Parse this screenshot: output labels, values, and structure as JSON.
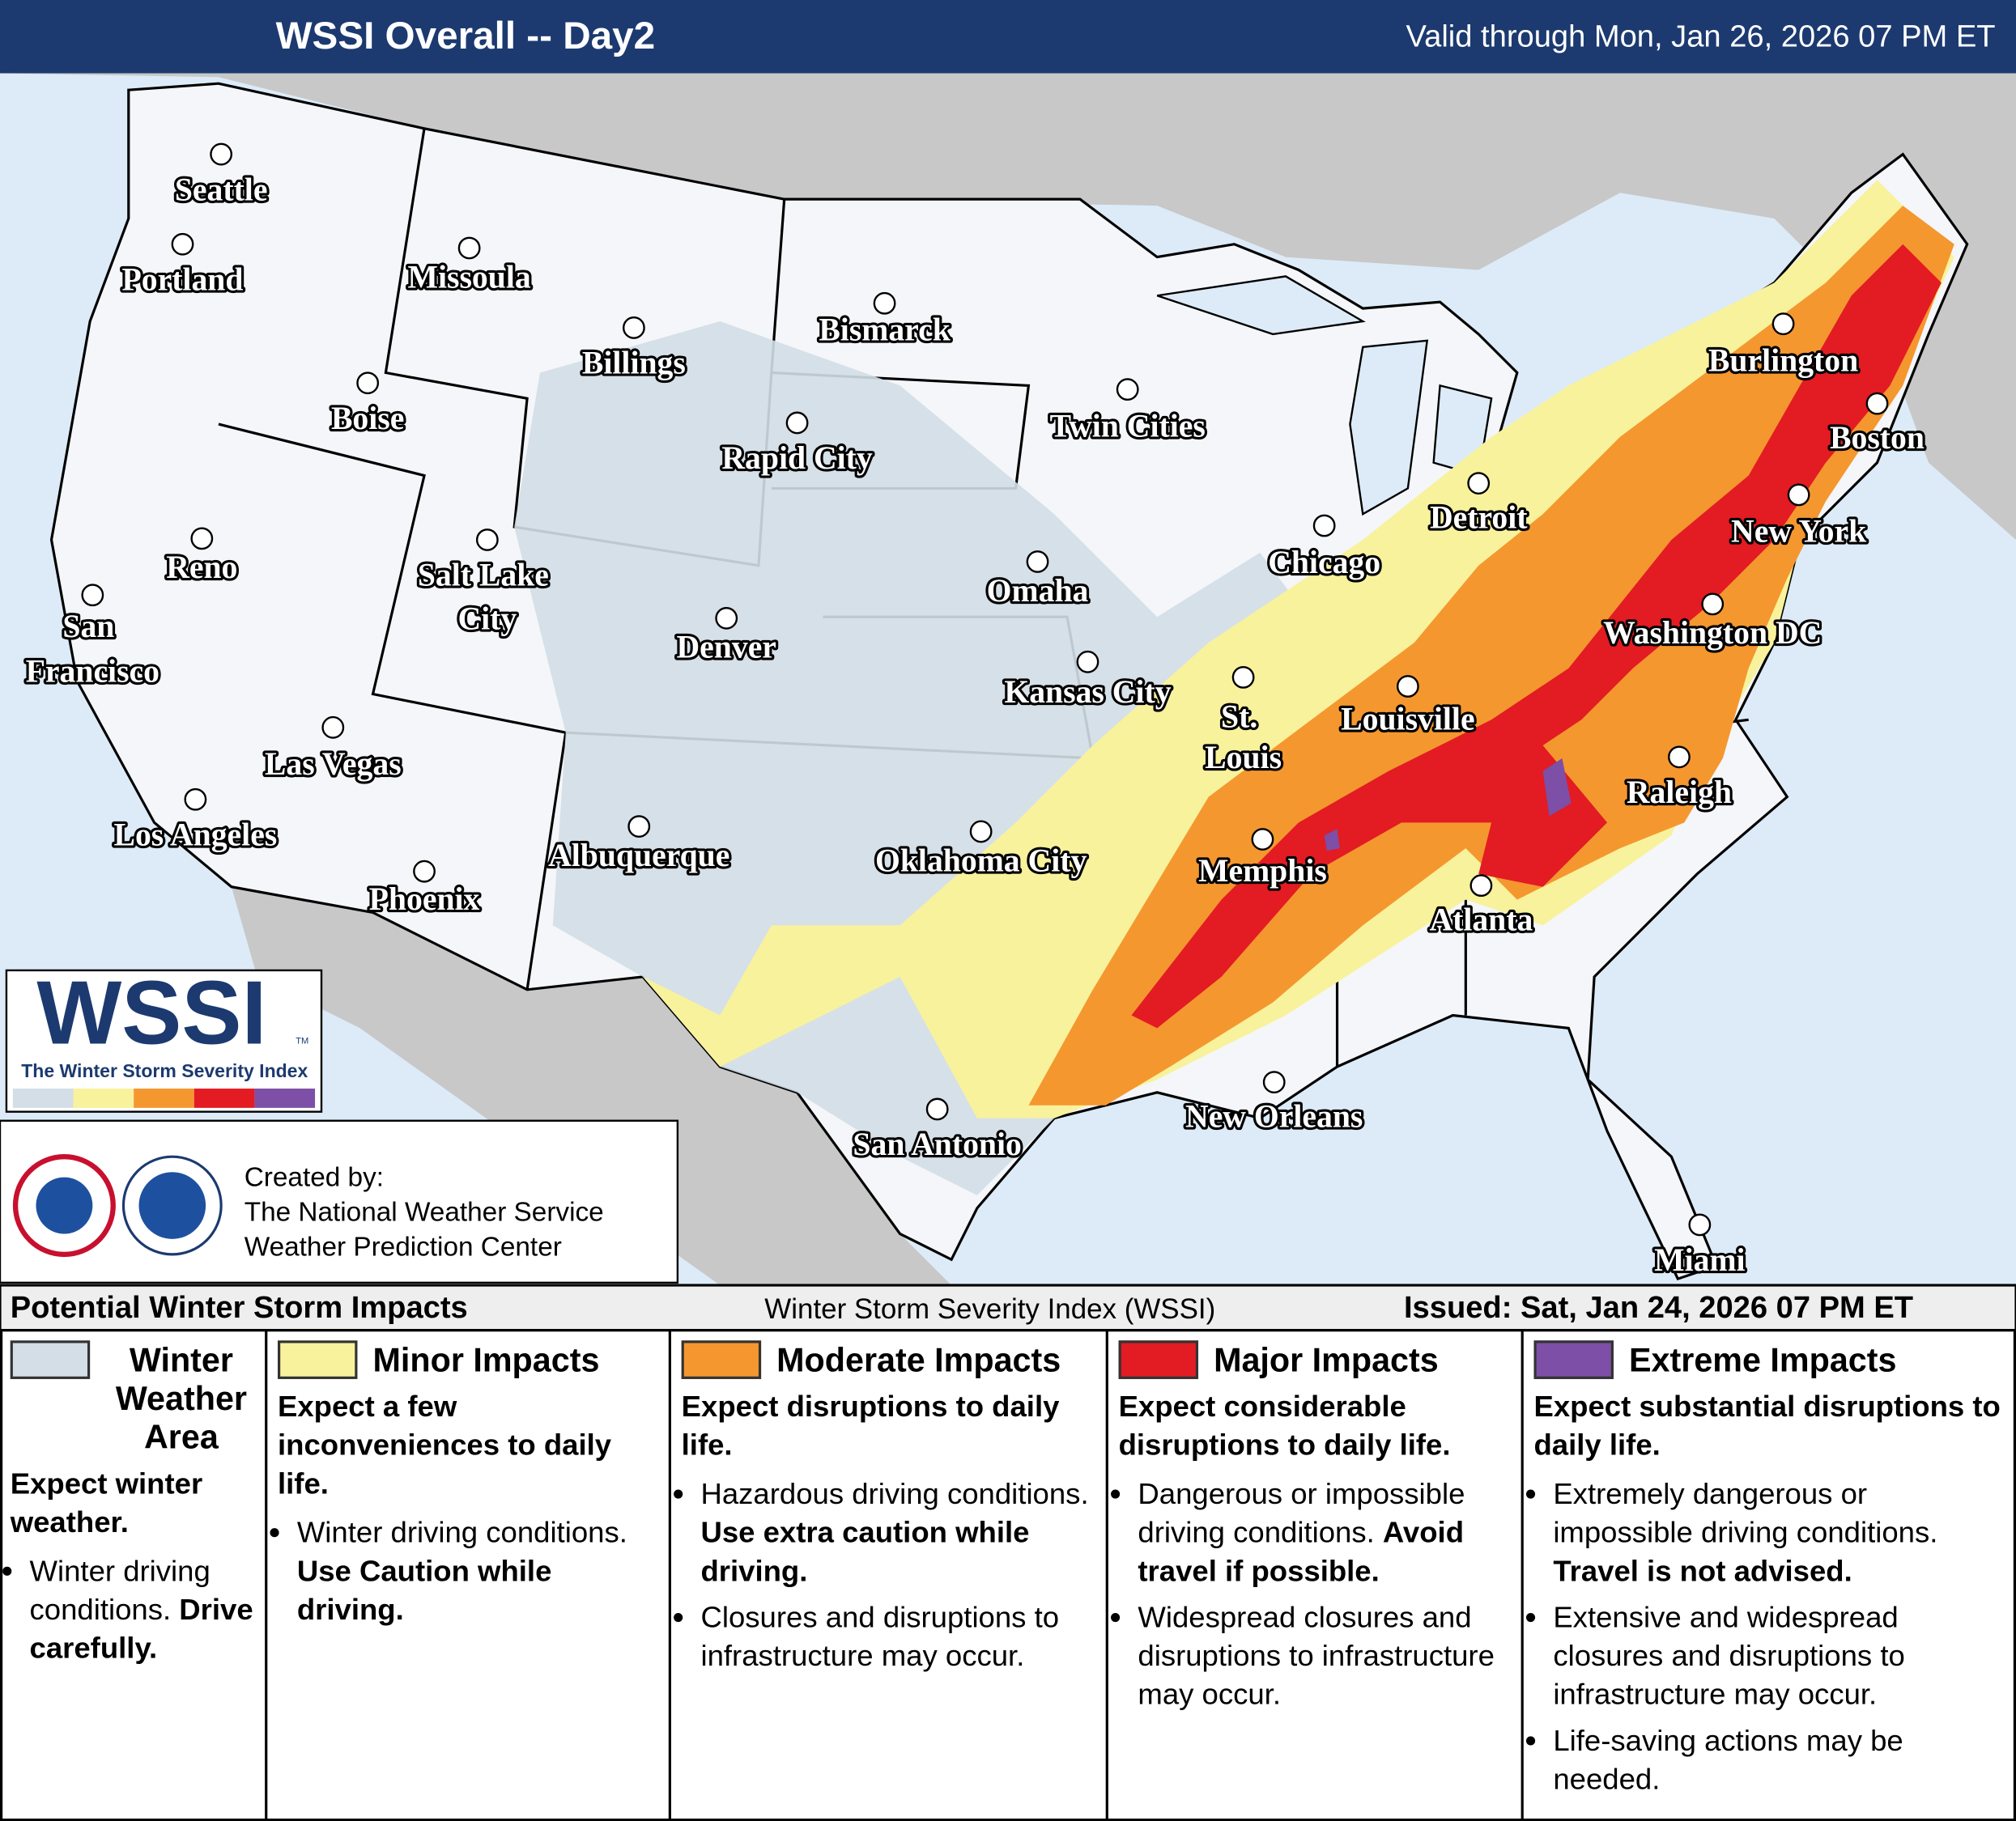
{
  "header": {
    "title": "WSSI Overall -- Day2",
    "valid": "Valid through Mon, Jan 26, 2026 07 PM ET"
  },
  "cities": [
    {
      "label": "Seattle"
    },
    {
      "label": "Portland"
    },
    {
      "label": "Missoula"
    },
    {
      "label": "Billings"
    },
    {
      "label": "Bismarck"
    },
    {
      "label": "Boise"
    },
    {
      "label": "Rapid City"
    },
    {
      "label": "Twin Cities"
    },
    {
      "label": "Burlington"
    },
    {
      "label": "Boston"
    },
    {
      "label": "Detroit"
    },
    {
      "label": "New York"
    },
    {
      "label": "Chicago"
    },
    {
      "label": "Reno"
    },
    {
      "label": "Salt Lake City"
    },
    {
      "label": "San Francisco"
    },
    {
      "label": "Washington DC"
    },
    {
      "label": "Omaha"
    },
    {
      "label": "Denver"
    },
    {
      "label": "Kansas City"
    },
    {
      "label": "St. Louis"
    },
    {
      "label": "Louisville"
    },
    {
      "label": "Las Vegas"
    },
    {
      "label": "Los Angeles"
    },
    {
      "label": "Raleigh"
    },
    {
      "label": "Albuquerque"
    },
    {
      "label": "Oklahoma City"
    },
    {
      "label": "Memphis"
    },
    {
      "label": "Phoenix"
    },
    {
      "label": "Atlanta"
    },
    {
      "label": "New Orleans"
    },
    {
      "label": "San Antonio"
    },
    {
      "label": "Miami"
    }
  ],
  "logo": {
    "acronym": "WSSI",
    "tm": "TM",
    "name": "The Winter Storm Severity Index"
  },
  "credits": {
    "lines": [
      "Created by:",
      "The National Weather Service",
      "Weather Prediction Center"
    ]
  },
  "legend": {
    "title": "Potential Winter Storm Impacts",
    "subtitle": "Winter Storm Severity Index (WSSI)",
    "issued": "Issued: Sat, Jan 24, 2026 07 PM ET",
    "categories": [
      {
        "name": "Winter Weather Area",
        "color": "#d3dee6",
        "summary": "Expect winter weather.",
        "bullets": [
          [
            {
              "text": "Winter driving conditions."
            },
            {
              "text": "Drive carefully.",
              "bold": true
            }
          ]
        ]
      },
      {
        "name": "Minor Impacts",
        "color": "#f8f29c",
        "summary": "Expect a few inconveniences to daily life.",
        "bullets": [
          [
            {
              "text": "Winter driving conditions."
            },
            {
              "text": "Use Caution while driving.",
              "bold": true
            }
          ]
        ]
      },
      {
        "name": "Moderate Impacts",
        "color": "#f5972f",
        "summary": "Expect disruptions to daily life.",
        "bullets": [
          [
            {
              "text": "Hazardous driving conditions."
            },
            {
              "text": "Use extra caution while driving.",
              "bold": true
            }
          ],
          [
            {
              "text": "Closures and disruptions to infrastructure may occur."
            }
          ]
        ]
      },
      {
        "name": "Major Impacts",
        "color": "#e31b23",
        "summary": "Expect considerable disruptions to daily life.",
        "bullets": [
          [
            {
              "text": "Dangerous or impossible driving conditions."
            },
            {
              "text": "Avoid travel if possible.",
              "bold": true
            }
          ],
          [
            {
              "text": "Widespread closures and disruptions to infrastructure may occur."
            }
          ]
        ]
      },
      {
        "name": "Extreme Impacts",
        "color": "#7d4fa6",
        "summary": "Expect substantial disruptions to daily life.",
        "bullets": [
          [
            {
              "text": "Extremely dangerous or impossible driving conditions."
            },
            {
              "text": "Travel is not advised.",
              "bold": true
            }
          ],
          [
            {
              "text": "Extensive and widespread closures and disruptions to infrastructure may occur."
            }
          ],
          [
            {
              "text": "Life-saving actions may be needed."
            }
          ]
        ]
      }
    ]
  }
}
